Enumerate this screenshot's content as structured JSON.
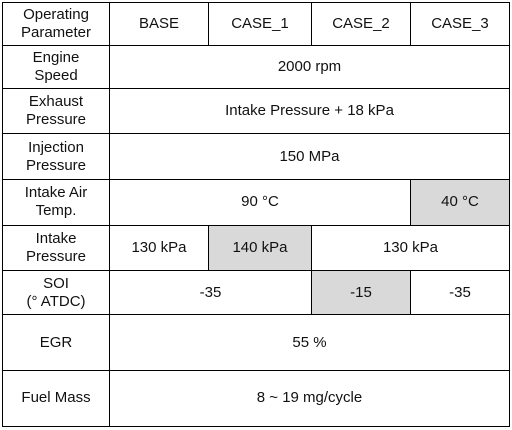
{
  "table": {
    "headers": [
      "Operating\nParameter",
      "BASE",
      "CASE_1",
      "CASE_2",
      "CASE_3"
    ],
    "rows": {
      "engine_speed": {
        "label": "Engine\nSpeed",
        "value": "2000 rpm"
      },
      "exhaust_pressure": {
        "label": "Exhaust\nPressure",
        "value": "Intake Pressure + 18 kPa"
      },
      "injection_pressure": {
        "label": "Injection\nPressure",
        "value": "150 MPa"
      },
      "intake_air_temp": {
        "label": "Intake Air\nTemp.",
        "value_main": "90 °C",
        "value_case3": "40 °C"
      },
      "intake_pressure": {
        "label": "Intake\nPressure",
        "base": "130 kPa",
        "case1": "140 kPa",
        "rest": "130 kPa"
      },
      "soi": {
        "label": "SOI\n(° ATDC)",
        "base_case1": "-35",
        "case2": "-15",
        "case3": "-35"
      },
      "egr": {
        "label": "EGR",
        "value": "55 %"
      },
      "fuel_mass": {
        "label": "Fuel Mass",
        "value": "8 ~ 19 mg/cycle"
      }
    }
  },
  "colors": {
    "highlight": "#d9d9d9",
    "border": "#000000",
    "text": "#111111"
  }
}
